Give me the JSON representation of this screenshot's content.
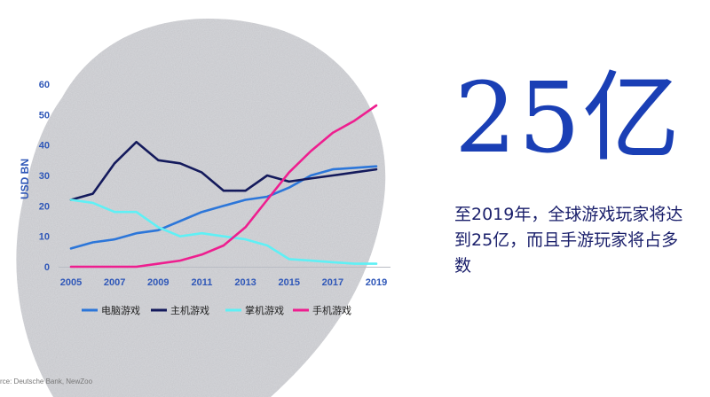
{
  "colors": {
    "background_blob": "#d7d8dc",
    "pc": "#2c76d9",
    "console": "#141a5c",
    "handheld": "#5ff0f5",
    "mobile": "#ee1e8f",
    "axis_text": "#2f57b8",
    "headline": "#1a3fb5",
    "desc_text": "#1a1f6b"
  },
  "headline": {
    "big_number": "25亿",
    "description": "至2019年，全球游戏玩家将达到25亿，而且手游玩家将占多数"
  },
  "source": "rce: Deutsche Bank, NewZoo",
  "chart_data": {
    "type": "line",
    "ylabel": "USD BN",
    "xlabel": "",
    "ylim": [
      0,
      60
    ],
    "xlim": [
      2005,
      2019
    ],
    "yticks": [
      0,
      10,
      20,
      30,
      40,
      50,
      60
    ],
    "xticks": [
      2005,
      2007,
      2009,
      2011,
      2013,
      2015,
      2017,
      2019
    ],
    "grid": false,
    "legend_position": "bottom",
    "x": [
      2005,
      2006,
      2007,
      2008,
      2009,
      2010,
      2011,
      2012,
      2013,
      2014,
      2015,
      2016,
      2017,
      2018,
      2019
    ],
    "series": [
      {
        "name": "电脑游戏",
        "color_key": "pc",
        "values": [
          6,
          8,
          9,
          11,
          12,
          15,
          18,
          20,
          22,
          23,
          26,
          30,
          32,
          32.5,
          33
        ]
      },
      {
        "name": "主机游戏",
        "color_key": "console",
        "values": [
          22,
          24,
          34,
          41,
          35,
          34,
          31,
          25,
          25,
          30,
          28,
          29,
          30,
          31,
          32
        ]
      },
      {
        "name": "掌机游戏",
        "color_key": "handheld",
        "values": [
          22,
          21,
          18,
          18,
          13,
          10,
          11,
          10,
          9,
          7,
          2.5,
          2,
          1.5,
          1,
          1
        ]
      },
      {
        "name": "手机游戏",
        "color_key": "mobile",
        "values": [
          0,
          0,
          0,
          0,
          1,
          2,
          4,
          7,
          13,
          22,
          31,
          38,
          44,
          48,
          53
        ]
      }
    ]
  }
}
